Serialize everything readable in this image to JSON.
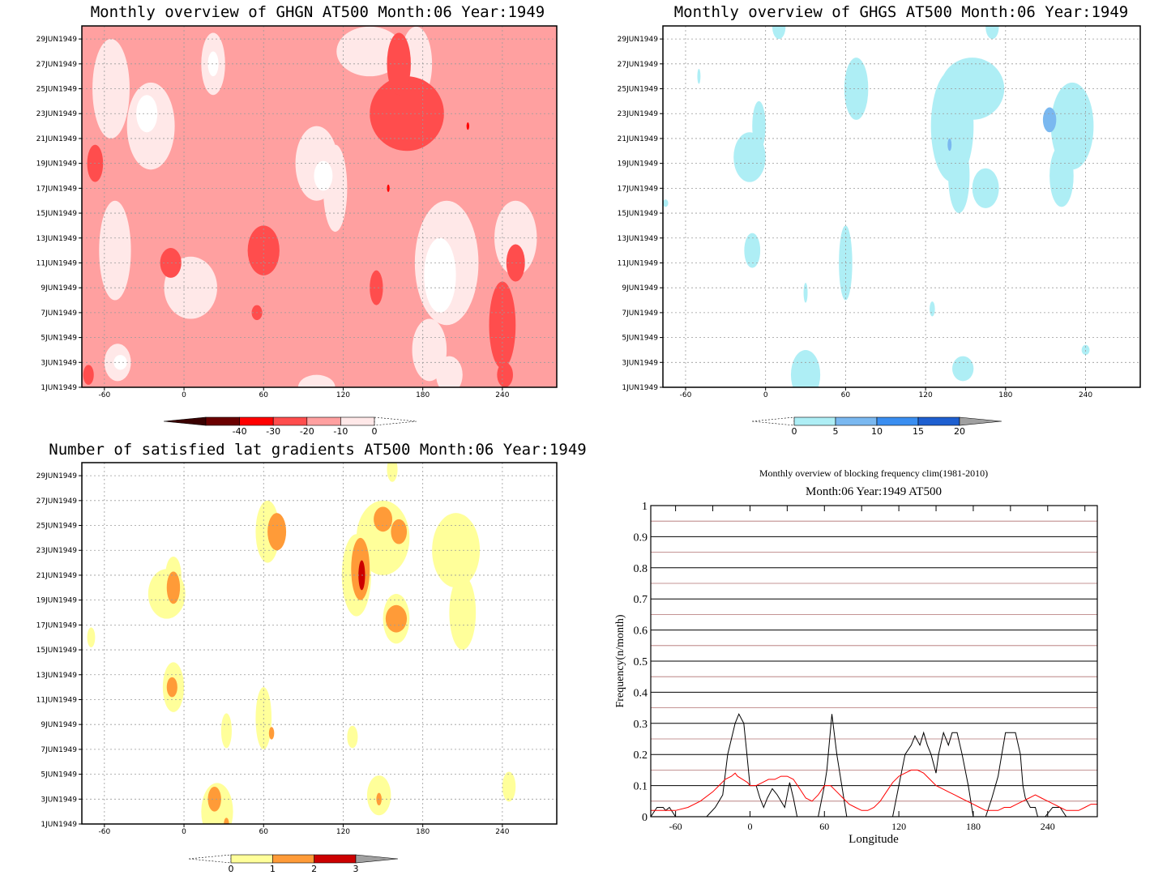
{
  "panels": [
    {
      "id": "ghgn",
      "title": "Monthly overview of GHGN AT500 Month:06 Year:1949",
      "x_ticks": [
        "-60",
        "0",
        "60",
        "120",
        "180",
        "240"
      ],
      "y_ticks": [
        "1JUN1949",
        "3JUN1949",
        "5JUN1949",
        "7JUN1949",
        "9JUN1949",
        "11JUN1949",
        "13JUN1949",
        "15JUN1949",
        "17JUN1949",
        "19JUN1949",
        "21JUN1949",
        "23JUN1949",
        "25JUN1949",
        "27JUN1949",
        "29JUN1949"
      ],
      "colorbar": {
        "labels": [
          "-40",
          "-30",
          "-20",
          "-10",
          "0"
        ],
        "colors": [
          "#6b0000",
          "#ff0000",
          "#ff4d4d",
          "#ffa0a0",
          "#ffe8e8"
        ],
        "under_color": "#3a0000"
      },
      "background": "#ffa0a0",
      "fills": [
        {
          "color": "#ffe8e8",
          "blobs": [
            [
              -55,
              25,
              14,
              4
            ],
            [
              -25,
              22,
              18,
              3.5
            ],
            [
              -52,
              12,
              12,
              4
            ],
            [
              -50,
              3,
              10,
              1.5
            ],
            [
              5,
              9,
              20,
              2.5
            ],
            [
              100,
              19,
              16,
              3
            ],
            [
              114,
              17,
              9,
              3.5
            ],
            [
              198,
              11,
              24,
              5
            ],
            [
              185,
              4,
              13,
              2.5
            ],
            [
              200,
              2,
              10,
              1.5
            ],
            [
              22,
              27,
              9,
              2.5
            ],
            [
              250,
              13,
              16,
              3
            ],
            [
              175,
              27,
              12,
              3
            ],
            [
              100,
              1,
              14,
              1
            ],
            [
              140,
              28,
              25,
              2
            ]
          ]
        },
        {
          "color": "#ffffff",
          "blobs": [
            [
              -28,
              23,
              8,
              1.5
            ],
            [
              22,
              27,
              4,
              1
            ],
            [
              105,
              18,
              7,
              1.2
            ],
            [
              193,
              10,
              12,
              3
            ],
            [
              -48,
              3,
              5,
              0.6
            ]
          ]
        },
        {
          "color": "#ff4d4d",
          "blobs": [
            [
              -67,
              19,
              6,
              1.5
            ],
            [
              -10,
              11,
              8,
              1.2
            ],
            [
              60,
              12,
              12,
              2
            ],
            [
              168,
              23,
              28,
              3
            ],
            [
              162,
              27,
              9,
              2.5
            ],
            [
              240,
              6,
              10,
              3.5
            ],
            [
              250,
              11,
              7,
              1.5
            ],
            [
              -72,
              2,
              4,
              0.8
            ],
            [
              145,
              9,
              5,
              1.4
            ],
            [
              55,
              7,
              4,
              0.6
            ],
            [
              242,
              2,
              6,
              1
            ]
          ]
        },
        {
          "color": "#ff0000",
          "blobs": [
            [
              214,
              22,
              1,
              0.3
            ],
            [
              154,
              17,
              1,
              0.3
            ]
          ]
        }
      ]
    },
    {
      "id": "ghgs",
      "title": "Monthly overview of GHGS AT500 Month:06 Year:1949",
      "x_ticks": [
        "-60",
        "0",
        "60",
        "120",
        "180",
        "240"
      ],
      "y_ticks": [
        "1JUN1949",
        "3JUN1949",
        "5JUN1949",
        "7JUN1949",
        "9JUN1949",
        "11JUN1949",
        "13JUN1949",
        "15JUN1949",
        "17JUN1949",
        "19JUN1949",
        "21JUN1949",
        "23JUN1949",
        "25JUN1949",
        "27JUN1949",
        "29JUN1949"
      ],
      "colorbar": {
        "labels": [
          "0",
          "5",
          "10",
          "15",
          "20"
        ],
        "colors": [
          "#aeeef5",
          "#7ab8f0",
          "#3a8ef0",
          "#1e5fd0"
        ],
        "over_color": "#a0a0a0"
      },
      "background": "#ffffff",
      "fills": [
        {
          "color": "#aeeef5",
          "blobs": [
            [
              -12,
              19.5,
              12,
              2
            ],
            [
              -5,
              22,
              5,
              2
            ],
            [
              -10,
              12,
              6,
              1.4
            ],
            [
              68,
              25,
              9,
              2.5
            ],
            [
              -50,
              26,
              1.2,
              0.6
            ],
            [
              30,
              2,
              11,
              2
            ],
            [
              140,
              22,
              16,
              4.5
            ],
            [
              155,
              25,
              24,
              2.5
            ],
            [
              145,
              18,
              8,
              3
            ],
            [
              165,
              17,
              10,
              1.6
            ],
            [
              230,
              22,
              16,
              3.5
            ],
            [
              222,
              18,
              9,
              2.5
            ],
            [
              60,
              11,
              5,
              3
            ],
            [
              30,
              8.6,
              1.5,
              0.8
            ],
            [
              125,
              7.3,
              2,
              0.6
            ],
            [
              148,
              2.5,
              8,
              1
            ],
            [
              240,
              4,
              3,
              0.4
            ],
            [
              10,
              30,
              5,
              1
            ],
            [
              170,
              30,
              5,
              1
            ],
            [
              -75,
              15.8,
              2,
              0.3
            ]
          ]
        },
        {
          "color": "#7ab8f0",
          "blobs": [
            [
              213,
              22.5,
              5,
              1
            ],
            [
              138,
              20.5,
              1.5,
              0.5
            ]
          ]
        }
      ]
    },
    {
      "id": "gradients",
      "title": "Number of satisfied lat gradients AT500 Month:06 Year:1949",
      "x_ticks": [
        "-60",
        "0",
        "60",
        "120",
        "180",
        "240"
      ],
      "y_ticks": [
        "1JUN1949",
        "3JUN1949",
        "5JUN1949",
        "7JUN1949",
        "9JUN1949",
        "11JUN1949",
        "13JUN1949",
        "15JUN1949",
        "17JUN1949",
        "19JUN1949",
        "21JUN1949",
        "23JUN1949",
        "25JUN1949",
        "27JUN1949",
        "29JUN1949"
      ],
      "colorbar": {
        "labels": [
          "0",
          "1",
          "2",
          "3"
        ],
        "colors": [
          "#ffff9a",
          "#ff9b38",
          "#cc0000"
        ],
        "over_color": "#a0a0a0"
      },
      "background": "#ffffff",
      "fills": [
        {
          "color": "#ffff9a",
          "blobs": [
            [
              -13,
              19.5,
              14,
              2
            ],
            [
              -8,
              21,
              6,
              1.5
            ],
            [
              -8,
              12,
              8,
              2
            ],
            [
              -70,
              16,
              3,
              0.8
            ],
            [
              63,
              24.5,
              9,
              2.5
            ],
            [
              60,
              9.5,
              6,
              2.5
            ],
            [
              32,
              8.5,
              4,
              1.4
            ],
            [
              25,
              2,
              12,
              2.3
            ],
            [
              32,
              0.7,
              4,
              0.8
            ],
            [
              130,
              21,
              11,
              3.3
            ],
            [
              150,
              24,
              20,
              3
            ],
            [
              160,
              17.5,
              10,
              2
            ],
            [
              205,
              23,
              18,
              3
            ],
            [
              210,
              18,
              10,
              3
            ],
            [
              127,
              8,
              4,
              0.9
            ],
            [
              147,
              3.3,
              9,
              1.6
            ],
            [
              245,
              4,
              5,
              1.2
            ],
            [
              157,
              29.5,
              4,
              1
            ]
          ]
        },
        {
          "color": "#ff9b38",
          "blobs": [
            [
              -8,
              20,
              5,
              1.3
            ],
            [
              -9,
              12,
              4,
              0.8
            ],
            [
              70,
              24.5,
              7,
              1.5
            ],
            [
              133,
              21.5,
              7,
              2.5
            ],
            [
              150,
              25.5,
              7,
              1
            ],
            [
              162,
              24.5,
              6,
              1
            ],
            [
              160,
              17.5,
              8,
              1.1
            ],
            [
              23,
              3,
              5,
              1
            ],
            [
              66,
              8.3,
              2,
              0.5
            ],
            [
              147,
              3,
              2,
              0.5
            ],
            [
              32,
              1,
              2,
              0.5
            ]
          ]
        },
        {
          "color": "#cc0000",
          "blobs": [
            [
              134,
              21,
              2.5,
              1.2
            ]
          ]
        }
      ]
    }
  ],
  "frequency_chart": {
    "title": "Monthly overview of blocking frequency clim(1981-2010)",
    "subtitle": "Month:06 Year:1949  AT500",
    "xlabel": "Longitude",
    "ylabel": "Frequency(n/month)",
    "x_ticks": [
      "-60",
      "0",
      "60",
      "120",
      "180",
      "240"
    ],
    "y_ticks": [
      "0",
      "0.1",
      "0.2",
      "0.3",
      "0.4",
      "0.5",
      "0.6",
      "0.7",
      "0.8",
      "0.9",
      "1"
    ],
    "xlim": [
      -80,
      280
    ],
    "ylim": [
      0,
      1
    ],
    "chart_data": {
      "type": "line",
      "series": [
        {
          "color": "#000000",
          "x": [
            -80,
            -75,
            -70,
            -68,
            -65,
            -60,
            -50,
            -35,
            -28,
            -22,
            -18,
            -12,
            -9,
            -5,
            -3,
            0,
            5,
            8,
            11,
            14,
            18,
            22,
            28,
            32,
            35,
            38,
            45,
            55,
            60,
            62,
            66,
            70,
            74,
            78,
            85,
            95,
            105,
            115,
            120,
            125,
            130,
            133,
            137,
            140,
            143,
            146,
            150,
            152,
            156,
            160,
            163,
            167,
            171,
            176,
            180,
            185,
            190,
            195,
            200,
            203,
            206,
            210,
            214,
            218,
            220,
            222,
            226,
            230,
            232,
            238,
            244,
            250,
            255,
            260,
            265,
            270,
            275,
            280
          ],
          "y": [
            0,
            0.03,
            0.03,
            0.02,
            0.03,
            0,
            0,
            0,
            0.03,
            0.07,
            0.2,
            0.3,
            0.33,
            0.3,
            0.22,
            0.1,
            0.1,
            0.06,
            0.03,
            0.06,
            0.09,
            0.07,
            0.03,
            0.11,
            0.06,
            0,
            0,
            0,
            0.1,
            0.15,
            0.33,
            0.2,
            0.1,
            0,
            0,
            0,
            0,
            0,
            0.1,
            0.2,
            0.23,
            0.26,
            0.23,
            0.27,
            0.23,
            0.2,
            0.14,
            0.2,
            0.27,
            0.23,
            0.27,
            0.27,
            0.2,
            0.1,
            0,
            0,
            0,
            0.06,
            0.13,
            0.2,
            0.27,
            0.27,
            0.27,
            0.2,
            0.1,
            0.06,
            0.03,
            0.03,
            0,
            0,
            0.03,
            0.03,
            0,
            0,
            0,
            0,
            0,
            0
          ]
        },
        {
          "color": "#ff0000",
          "x": [
            -80,
            -70,
            -60,
            -50,
            -40,
            -30,
            -25,
            -20,
            -15,
            -12,
            -10,
            -6,
            -2,
            0,
            5,
            10,
            15,
            20,
            25,
            30,
            35,
            40,
            45,
            50,
            55,
            60,
            65,
            70,
            75,
            80,
            85,
            90,
            95,
            100,
            105,
            110,
            115,
            120,
            125,
            130,
            135,
            140,
            145,
            150,
            155,
            160,
            165,
            170,
            175,
            180,
            185,
            190,
            195,
            200,
            205,
            210,
            215,
            220,
            225,
            230,
            235,
            240,
            245,
            250,
            255,
            260,
            265,
            270,
            275,
            280
          ],
          "y": [
            0.02,
            0.02,
            0.02,
            0.03,
            0.05,
            0.08,
            0.1,
            0.12,
            0.13,
            0.14,
            0.13,
            0.12,
            0.11,
            0.1,
            0.1,
            0.11,
            0.12,
            0.12,
            0.13,
            0.13,
            0.12,
            0.09,
            0.06,
            0.05,
            0.07,
            0.1,
            0.1,
            0.08,
            0.06,
            0.04,
            0.03,
            0.02,
            0.02,
            0.03,
            0.05,
            0.08,
            0.11,
            0.13,
            0.14,
            0.15,
            0.15,
            0.14,
            0.12,
            0.1,
            0.09,
            0.08,
            0.07,
            0.06,
            0.05,
            0.04,
            0.03,
            0.02,
            0.02,
            0.02,
            0.03,
            0.03,
            0.04,
            0.05,
            0.06,
            0.07,
            0.06,
            0.05,
            0.04,
            0.03,
            0.02,
            0.02,
            0.02,
            0.03,
            0.04,
            0.04
          ]
        }
      ],
      "grid_major": {
        "color": "#000000",
        "step": 0.1
      },
      "grid_minor": {
        "color": "#b07070",
        "offset": 0.05
      }
    }
  }
}
